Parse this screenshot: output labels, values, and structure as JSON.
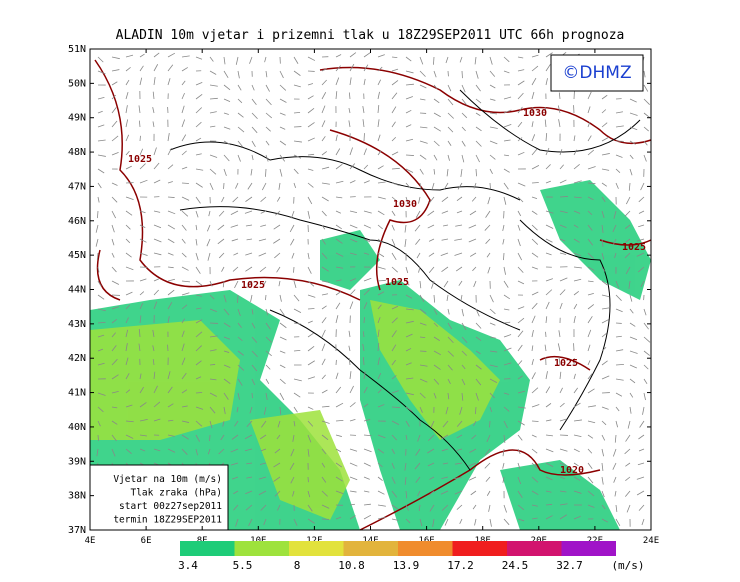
{
  "title": "ALADIN 10m vjetar i prizemni tlak u 18Z29SEP2011 UTC 66h prognoza",
  "copyright": "©DHMZ",
  "latitude_labels": [
    "51N",
    "50N",
    "49N",
    "48N",
    "47N",
    "46N",
    "45N",
    "44N",
    "43N",
    "42N",
    "41N",
    "40N",
    "39N",
    "38N",
    "37N"
  ],
  "longitude_labels": [
    "4E",
    "6E",
    "8E",
    "10E",
    "12E",
    "14E",
    "16E",
    "18E",
    "20E",
    "22E",
    "24E"
  ],
  "isobar_labels": [
    "1025",
    "1030",
    "1030",
    "1025",
    "1025",
    "1025",
    "1025",
    "1020"
  ],
  "info_box": [
    "Vjetar na 10m (m/s)",
    "Tlak zraka (hPa)",
    "start 00z27sep2011",
    "termin 18Z29SEP2011"
  ],
  "color_scale": {
    "colors": [
      "#1ecc78",
      "#9ee23c",
      "#e2e23c",
      "#e2b43c",
      "#f08c2d",
      "#f01e1e",
      "#d2146e",
      "#a014c8"
    ],
    "labels": [
      "3.4",
      "5.5",
      "8",
      "10.8",
      "13.9",
      "17.2",
      "24.5",
      "32.7"
    ],
    "unit": "(m/s)"
  }
}
